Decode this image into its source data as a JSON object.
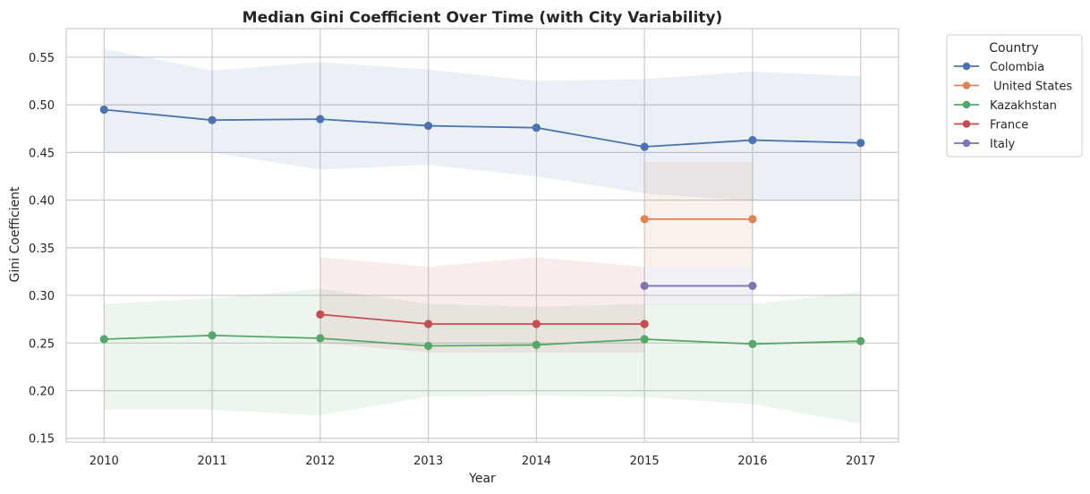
{
  "chart_data": {
    "type": "line",
    "title": "Median Gini Coefficient Over Time (with City Variability)",
    "xlabel": "Year",
    "ylabel": "Gini Coefficient",
    "x_ticks": [
      "2010",
      "2011",
      "2012",
      "2013",
      "2014",
      "2015",
      "2016",
      "2017"
    ],
    "y_ticks": [
      "0.15",
      "0.20",
      "0.25",
      "0.30",
      "0.35",
      "0.40",
      "0.45",
      "0.50",
      "0.55"
    ],
    "xlim": [
      2009.65,
      2017.35
    ],
    "ylim": [
      0.146,
      0.58
    ],
    "grid": true,
    "legend": {
      "title": "Country",
      "placement": "outside-top-right"
    },
    "series": [
      {
        "name": "Colombia",
        "color": "#4c72b0",
        "x": [
          2010,
          2011,
          2012,
          2013,
          2014,
          2015,
          2016,
          2017
        ],
        "y": [
          0.495,
          0.484,
          0.485,
          0.478,
          0.476,
          0.456,
          0.463,
          0.46
        ],
        "lower": [
          0.45,
          0.45,
          0.432,
          0.437,
          0.425,
          0.407,
          0.399,
          0.399
        ],
        "upper": [
          0.559,
          0.536,
          0.545,
          0.537,
          0.525,
          0.527,
          0.535,
          0.53
        ]
      },
      {
        "name": " United States",
        "color": "#dd8452",
        "x": [
          2015,
          2016
        ],
        "y": [
          0.38,
          0.38
        ],
        "lower": [
          0.33,
          0.33
        ],
        "upper": [
          0.44,
          0.44
        ]
      },
      {
        "name": "Kazakhstan",
        "color": "#55a868",
        "x": [
          2010,
          2011,
          2012,
          2013,
          2014,
          2015,
          2016,
          2017
        ],
        "y": [
          0.254,
          0.258,
          0.255,
          0.247,
          0.248,
          0.254,
          0.249,
          0.252
        ],
        "lower": [
          0.18,
          0.18,
          0.174,
          0.194,
          0.195,
          0.193,
          0.186,
          0.165
        ],
        "upper": [
          0.291,
          0.297,
          0.307,
          0.291,
          0.288,
          0.291,
          0.291,
          0.304
        ]
      },
      {
        "name": "France",
        "color": "#c44e52",
        "x": [
          2012,
          2013,
          2014,
          2015
        ],
        "y": [
          0.28,
          0.27,
          0.27,
          0.27
        ],
        "lower": [
          0.25,
          0.24,
          0.24,
          0.24
        ],
        "upper": [
          0.34,
          0.33,
          0.34,
          0.33
        ]
      },
      {
        "name": "Italy",
        "color": "#8172b3",
        "x": [
          2015,
          2016
        ],
        "y": [
          0.31,
          0.31
        ],
        "lower": [
          0.29,
          0.29
        ],
        "upper": [
          0.33,
          0.33
        ]
      }
    ]
  }
}
